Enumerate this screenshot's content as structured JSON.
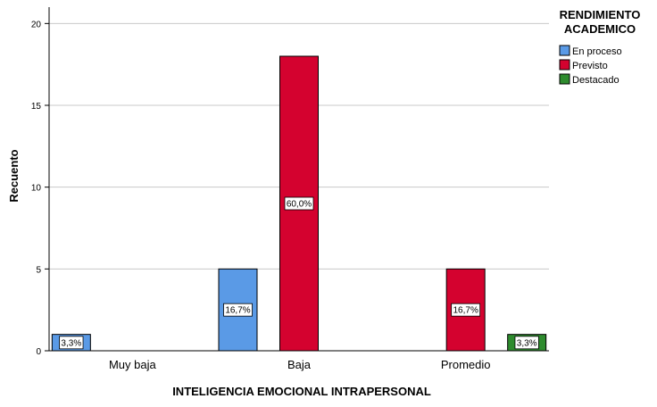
{
  "chart_data": {
    "type": "bar",
    "xlabel": "INTELIGENCIA EMOCIONAL INTRAPERSONAL",
    "ylabel": "Recuento",
    "categories": [
      "Muy baja",
      "Baja",
      "Promedio"
    ],
    "ylim": [
      0,
      21
    ],
    "yticks": [
      0,
      5,
      10,
      15,
      20
    ],
    "grid": true,
    "legend": {
      "title_lines": [
        "RENDIMIENTO",
        "ACADEMICO"
      ],
      "placement": "top-right"
    },
    "series": [
      {
        "name": "En proceso",
        "color": "#5a9ae6",
        "values": [
          1,
          5,
          0
        ],
        "labels": [
          "3,3%",
          "16,7%",
          ""
        ]
      },
      {
        "name": "Previsto",
        "color": "#d4022f",
        "values": [
          0,
          18,
          5
        ],
        "labels": [
          "",
          "60,0%",
          "16,7%"
        ]
      },
      {
        "name": "Destacado",
        "color": "#2e8b2e",
        "values": [
          0,
          0,
          1
        ],
        "labels": [
          "",
          "",
          "3,3%"
        ]
      }
    ]
  }
}
